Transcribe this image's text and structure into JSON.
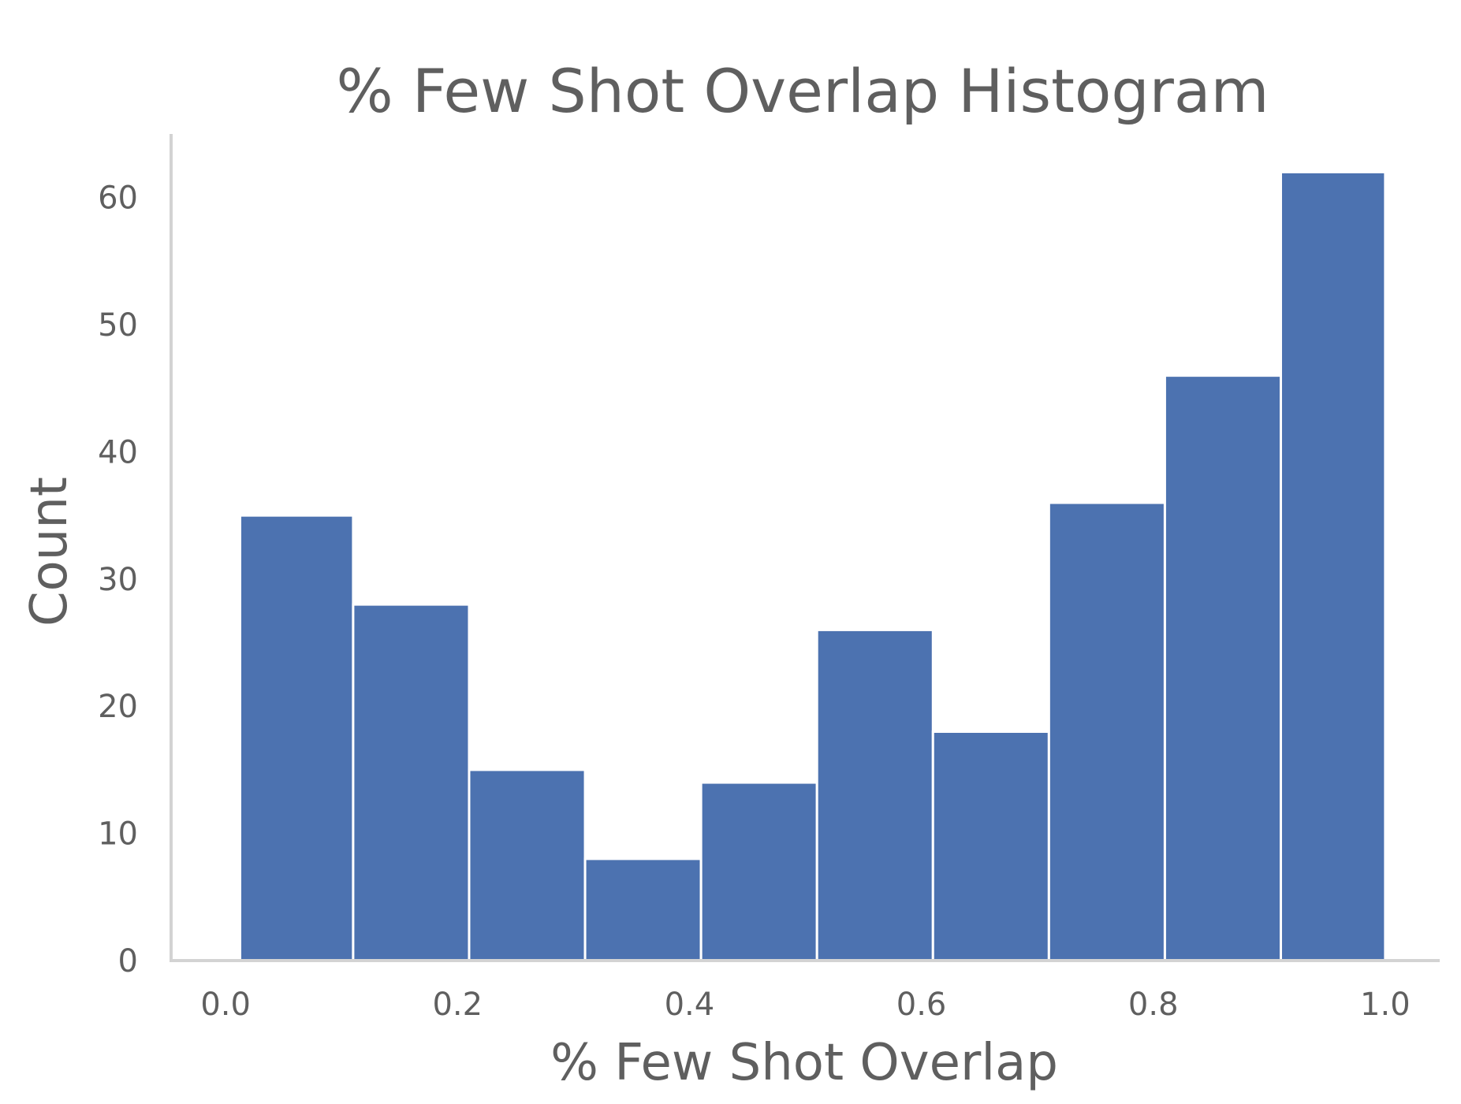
{
  "chart_data": {
    "type": "bar",
    "title": "% Few Shot Overlap Histogram",
    "xlabel": "% Few Shot Overlap",
    "ylabel": "Count",
    "xlim": [
      -0.047,
      1.047
    ],
    "ylim": [
      0,
      65
    ],
    "x_ticks": [
      "0.0",
      "0.2",
      "0.4",
      "0.6",
      "0.8",
      "1.0"
    ],
    "y_ticks": [
      "0",
      "10",
      "20",
      "30",
      "40",
      "50",
      "60"
    ],
    "grid": false,
    "legend": "none",
    "bar_color": "#4c72b0",
    "axis_color": "#d3d3d3",
    "text_color": "#5f5f5f",
    "bins": [
      {
        "x0": 0.0125,
        "x1": 0.11,
        "count": 35
      },
      {
        "x0": 0.11,
        "x1": 0.21,
        "count": 28
      },
      {
        "x0": 0.21,
        "x1": 0.31,
        "count": 15
      },
      {
        "x0": 0.31,
        "x1": 0.41,
        "count": 8
      },
      {
        "x0": 0.41,
        "x1": 0.51,
        "count": 14
      },
      {
        "x0": 0.51,
        "x1": 0.61,
        "count": 26
      },
      {
        "x0": 0.61,
        "x1": 0.71,
        "count": 18
      },
      {
        "x0": 0.71,
        "x1": 0.81,
        "count": 36
      },
      {
        "x0": 0.81,
        "x1": 0.91,
        "count": 46
      },
      {
        "x0": 0.91,
        "x1": 1.0,
        "count": 62
      }
    ]
  }
}
